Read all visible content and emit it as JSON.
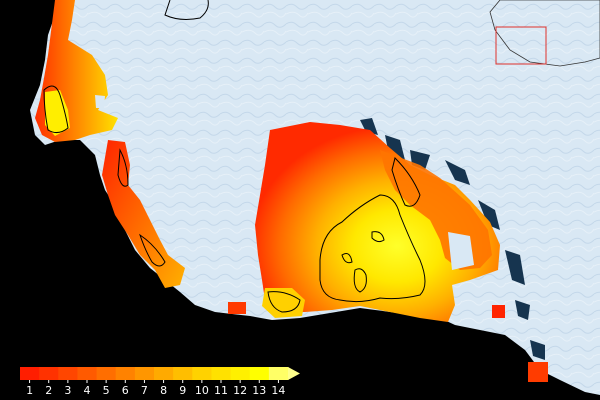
{
  "map": {
    "land_color": "#d7e6f3",
    "ocean_color": "#000000",
    "inset_box_color": "#e0322c"
  },
  "legend": {
    "ticks": [
      "1",
      "2",
      "3",
      "4",
      "5",
      "6",
      "7",
      "8",
      "9",
      "10",
      "11",
      "12",
      "13",
      "14"
    ],
    "colors": [
      "#ff1e00",
      "#ff3200",
      "#ff4600",
      "#ff5a00",
      "#ff6e00",
      "#ff8200",
      "#ff9600",
      "#ffaa00",
      "#ffbe00",
      "#ffd200",
      "#ffe100",
      "#fff000",
      "#ffff00",
      "#ffff66"
    ],
    "extend": "max"
  }
}
